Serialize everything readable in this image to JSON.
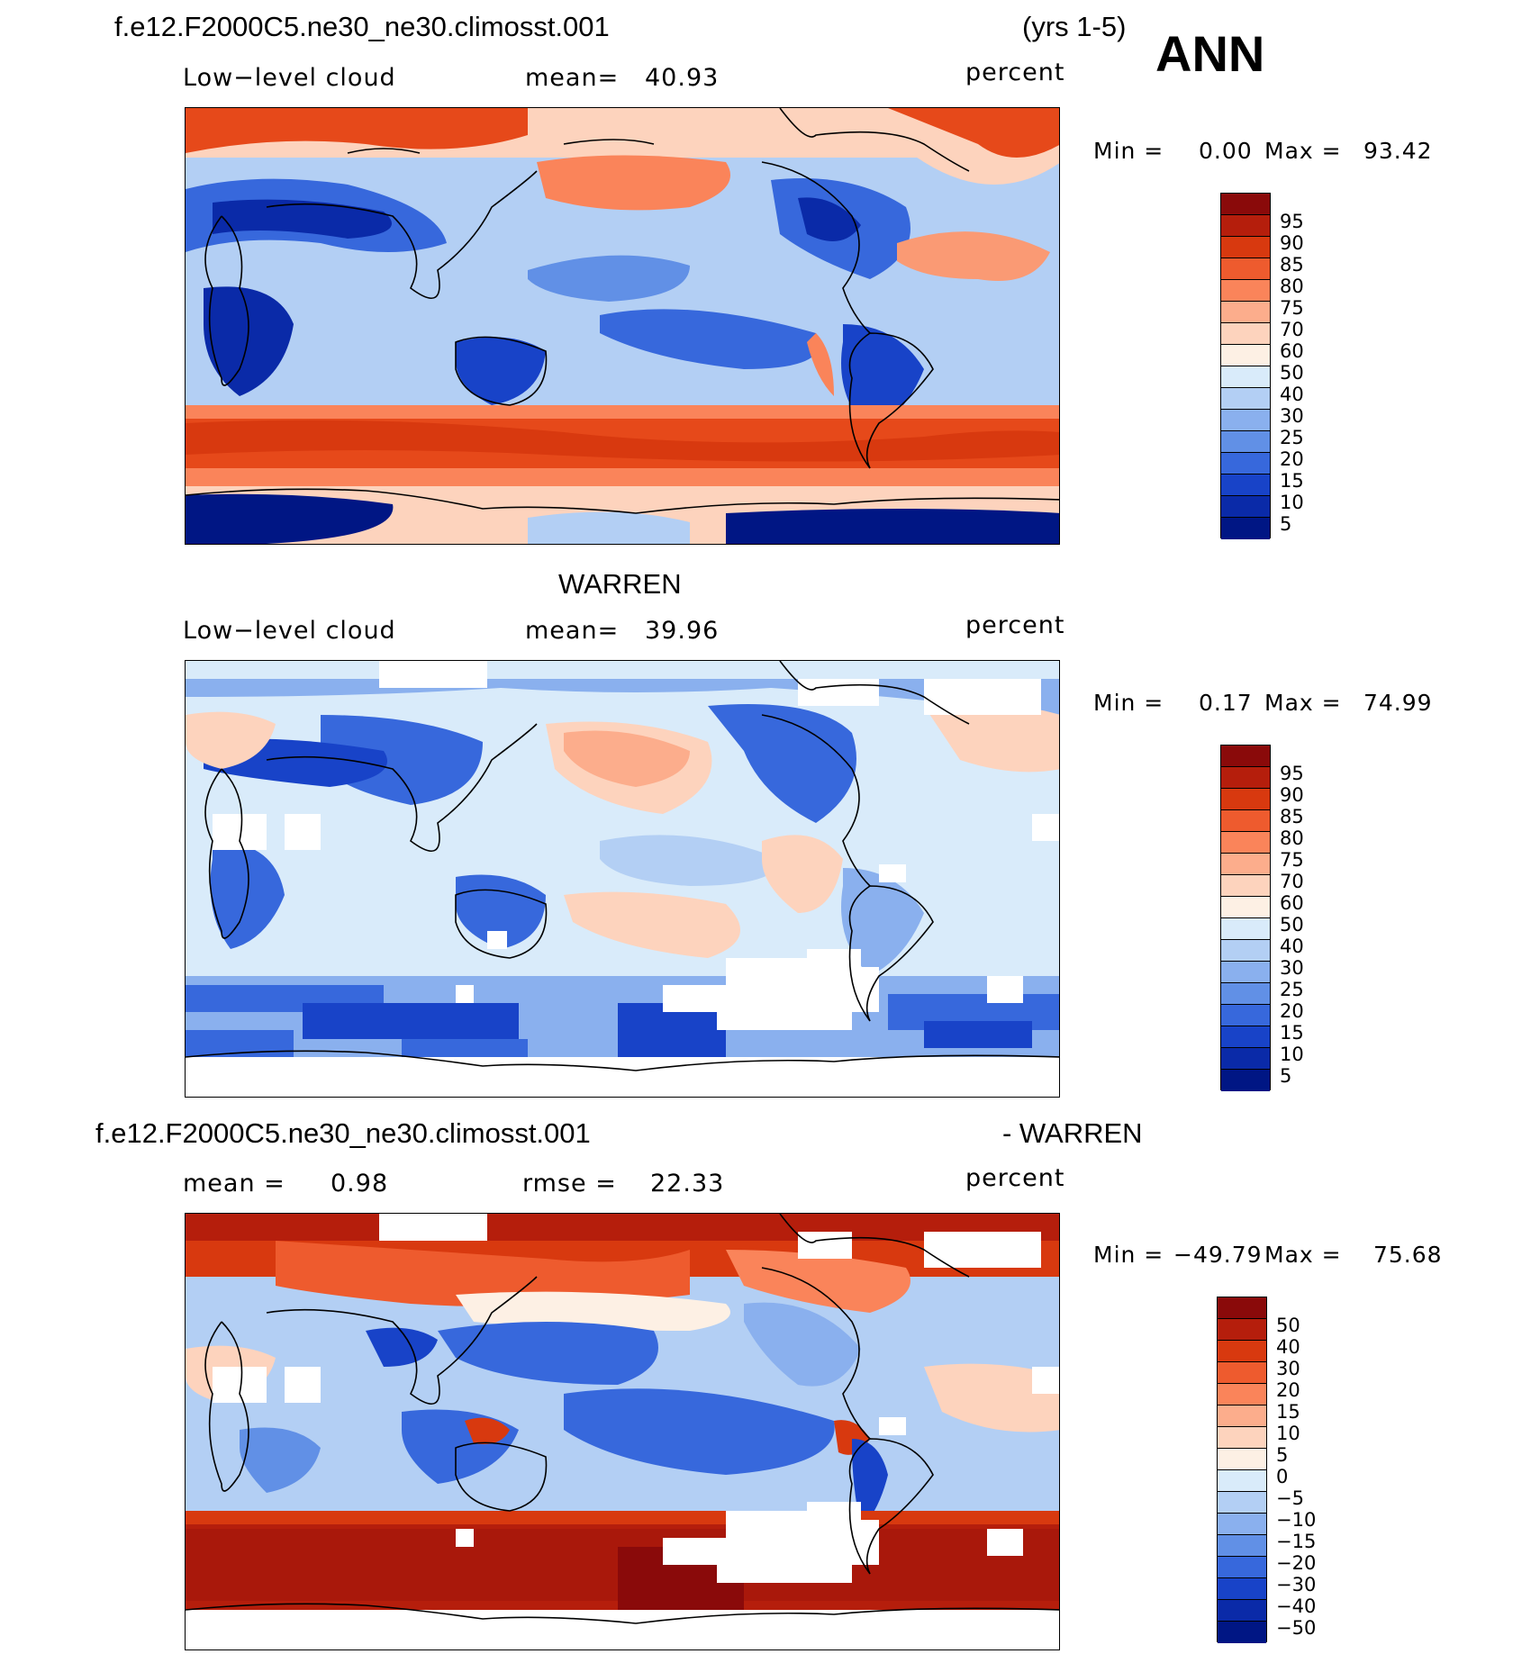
{
  "header": {
    "case_name": "f.e12.F2000C5.ne30_ne30.climosst.001",
    "years": "(yrs 1-5)",
    "season": "ANN"
  },
  "panels": [
    {
      "field": "Low−level cloud",
      "mean_label": "mean=",
      "mean_value": "40.93",
      "units": "percent",
      "min_label": "Min =",
      "min_value": "0.00",
      "max_label": "Max =",
      "max_value": "93.42",
      "levels": [
        "95",
        "90",
        "85",
        "80",
        "75",
        "70",
        "60",
        "50",
        "40",
        "30",
        "25",
        "20",
        "15",
        "10",
        "5"
      ]
    },
    {
      "title": "WARREN",
      "field": "Low−level cloud",
      "mean_label": "mean=",
      "mean_value": "39.96",
      "units": "percent",
      "min_label": "Min =",
      "min_value": "0.17",
      "max_label": "Max =",
      "max_value": "74.99",
      "levels": [
        "95",
        "90",
        "85",
        "80",
        "75",
        "70",
        "60",
        "50",
        "40",
        "30",
        "25",
        "20",
        "15",
        "10",
        "5"
      ]
    },
    {
      "title_left": "f.e12.F2000C5.ne30_ne30.climosst.001",
      "title_right": "- WARREN",
      "mean_label": "mean =",
      "mean_value": "0.98",
      "rmse_label": "rmse =",
      "rmse_value": "22.33",
      "units": "percent",
      "min_label": "Min =",
      "min_value": "−49.79",
      "max_label": "Max =",
      "max_value": "75.68",
      "levels": [
        "50",
        "40",
        "30",
        "20",
        "15",
        "10",
        "5",
        "0",
        "−5",
        "−10",
        "−15",
        "−20",
        "−30",
        "−40",
        "−50"
      ]
    }
  ],
  "colorbar_colors": [
    "#8a0a0a",
    "#b51e0c",
    "#d8390f",
    "#ee5b2e",
    "#fa845a",
    "#fcad8c",
    "#fdd3bd",
    "#fdf0e4",
    "#d9ebfa",
    "#b3cff4",
    "#8ab0ee",
    "#6190e6",
    "#3768dc",
    "#1843c8",
    "#0a2aa8",
    "#001684"
  ],
  "map_palette": {
    "deep_blue": "#0a2aa8",
    "mid_blue": "#3f74de",
    "light_blue": "#b3cff4",
    "pale_blue": "#d9ebfa",
    "pale_red": "#fdd3bd",
    "light_red": "#fa9a74",
    "red": "#e6491a",
    "dark_red": "#a9180b"
  }
}
